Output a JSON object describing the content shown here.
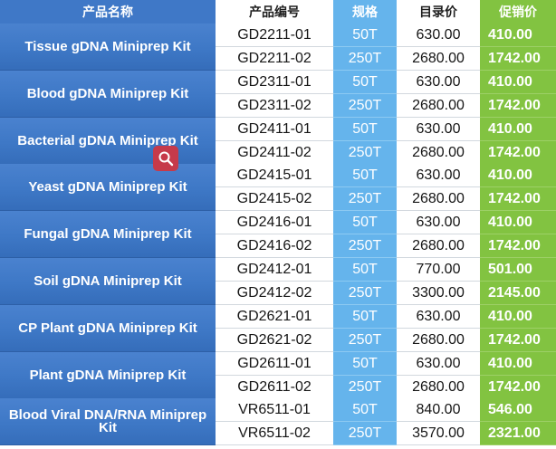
{
  "header": {
    "product_name": "产品名称",
    "product_code": "产品编号",
    "spec": "规格",
    "catalog_price": "目录价",
    "promo_price": "促销价"
  },
  "colors": {
    "header_blue": "#3f78c7",
    "product_blue": "#3e78c6",
    "spec_blue": "#65b4ec",
    "promo_green": "#82c341",
    "search_red": "#c63a4a"
  },
  "products": [
    {
      "name": "Tissue gDNA Miniprep Kit",
      "skus": [
        {
          "code": "GD2211-01",
          "spec": "50T",
          "catalog": "630.00",
          "promo": "410.00"
        },
        {
          "code": "GD2211-02",
          "spec": "250T",
          "catalog": "2680.00",
          "promo": "1742.00"
        }
      ]
    },
    {
      "name": "Blood gDNA Miniprep Kit",
      "skus": [
        {
          "code": "GD2311-01",
          "spec": "50T",
          "catalog": "630.00",
          "promo": "410.00"
        },
        {
          "code": "GD2311-02",
          "spec": "250T",
          "catalog": "2680.00",
          "promo": "1742.00"
        }
      ]
    },
    {
      "name": "Bacterial gDNA Miniprep Kit",
      "skus": [
        {
          "code": "GD2411-01",
          "spec": "50T",
          "catalog": "630.00",
          "promo": "410.00"
        },
        {
          "code": "GD2411-02",
          "spec": "250T",
          "catalog": "2680.00",
          "promo": "1742.00"
        }
      ]
    },
    {
      "name": "Yeast gDNA Miniprep Kit",
      "skus": [
        {
          "code": "GD2415-01",
          "spec": "50T",
          "catalog": "630.00",
          "promo": "410.00"
        },
        {
          "code": "GD2415-02",
          "spec": "250T",
          "catalog": "2680.00",
          "promo": "1742.00"
        }
      ]
    },
    {
      "name": "Fungal gDNA Miniprep Kit",
      "skus": [
        {
          "code": "GD2416-01",
          "spec": "50T",
          "catalog": "630.00",
          "promo": "410.00"
        },
        {
          "code": "GD2416-02",
          "spec": "250T",
          "catalog": "2680.00",
          "promo": "1742.00"
        }
      ]
    },
    {
      "name": "Soil gDNA Miniprep Kit",
      "skus": [
        {
          "code": "GD2412-01",
          "spec": "50T",
          "catalog": "770.00",
          "promo": "501.00"
        },
        {
          "code": "GD2412-02",
          "spec": "250T",
          "catalog": "3300.00",
          "promo": "2145.00"
        }
      ]
    },
    {
      "name": "CP Plant gDNA Miniprep Kit",
      "skus": [
        {
          "code": "GD2621-01",
          "spec": "50T",
          "catalog": "630.00",
          "promo": "410.00"
        },
        {
          "code": "GD2621-02",
          "spec": "250T",
          "catalog": "2680.00",
          "promo": "1742.00"
        }
      ]
    },
    {
      "name": "Plant gDNA Miniprep Kit",
      "skus": [
        {
          "code": "GD2611-01",
          "spec": "50T",
          "catalog": "630.00",
          "promo": "410.00"
        },
        {
          "code": "GD2611-02",
          "spec": "250T",
          "catalog": "2680.00",
          "promo": "1742.00"
        }
      ]
    },
    {
      "name": "Blood Viral DNA/RNA Miniprep Kit",
      "skus": [
        {
          "code": "VR6511-01",
          "spec": "50T",
          "catalog": "840.00",
          "promo": "546.00"
        },
        {
          "code": "VR6511-02",
          "spec": "250T",
          "catalog": "3570.00",
          "promo": "2321.00"
        }
      ]
    }
  ],
  "search_icon": "magnifier-icon"
}
